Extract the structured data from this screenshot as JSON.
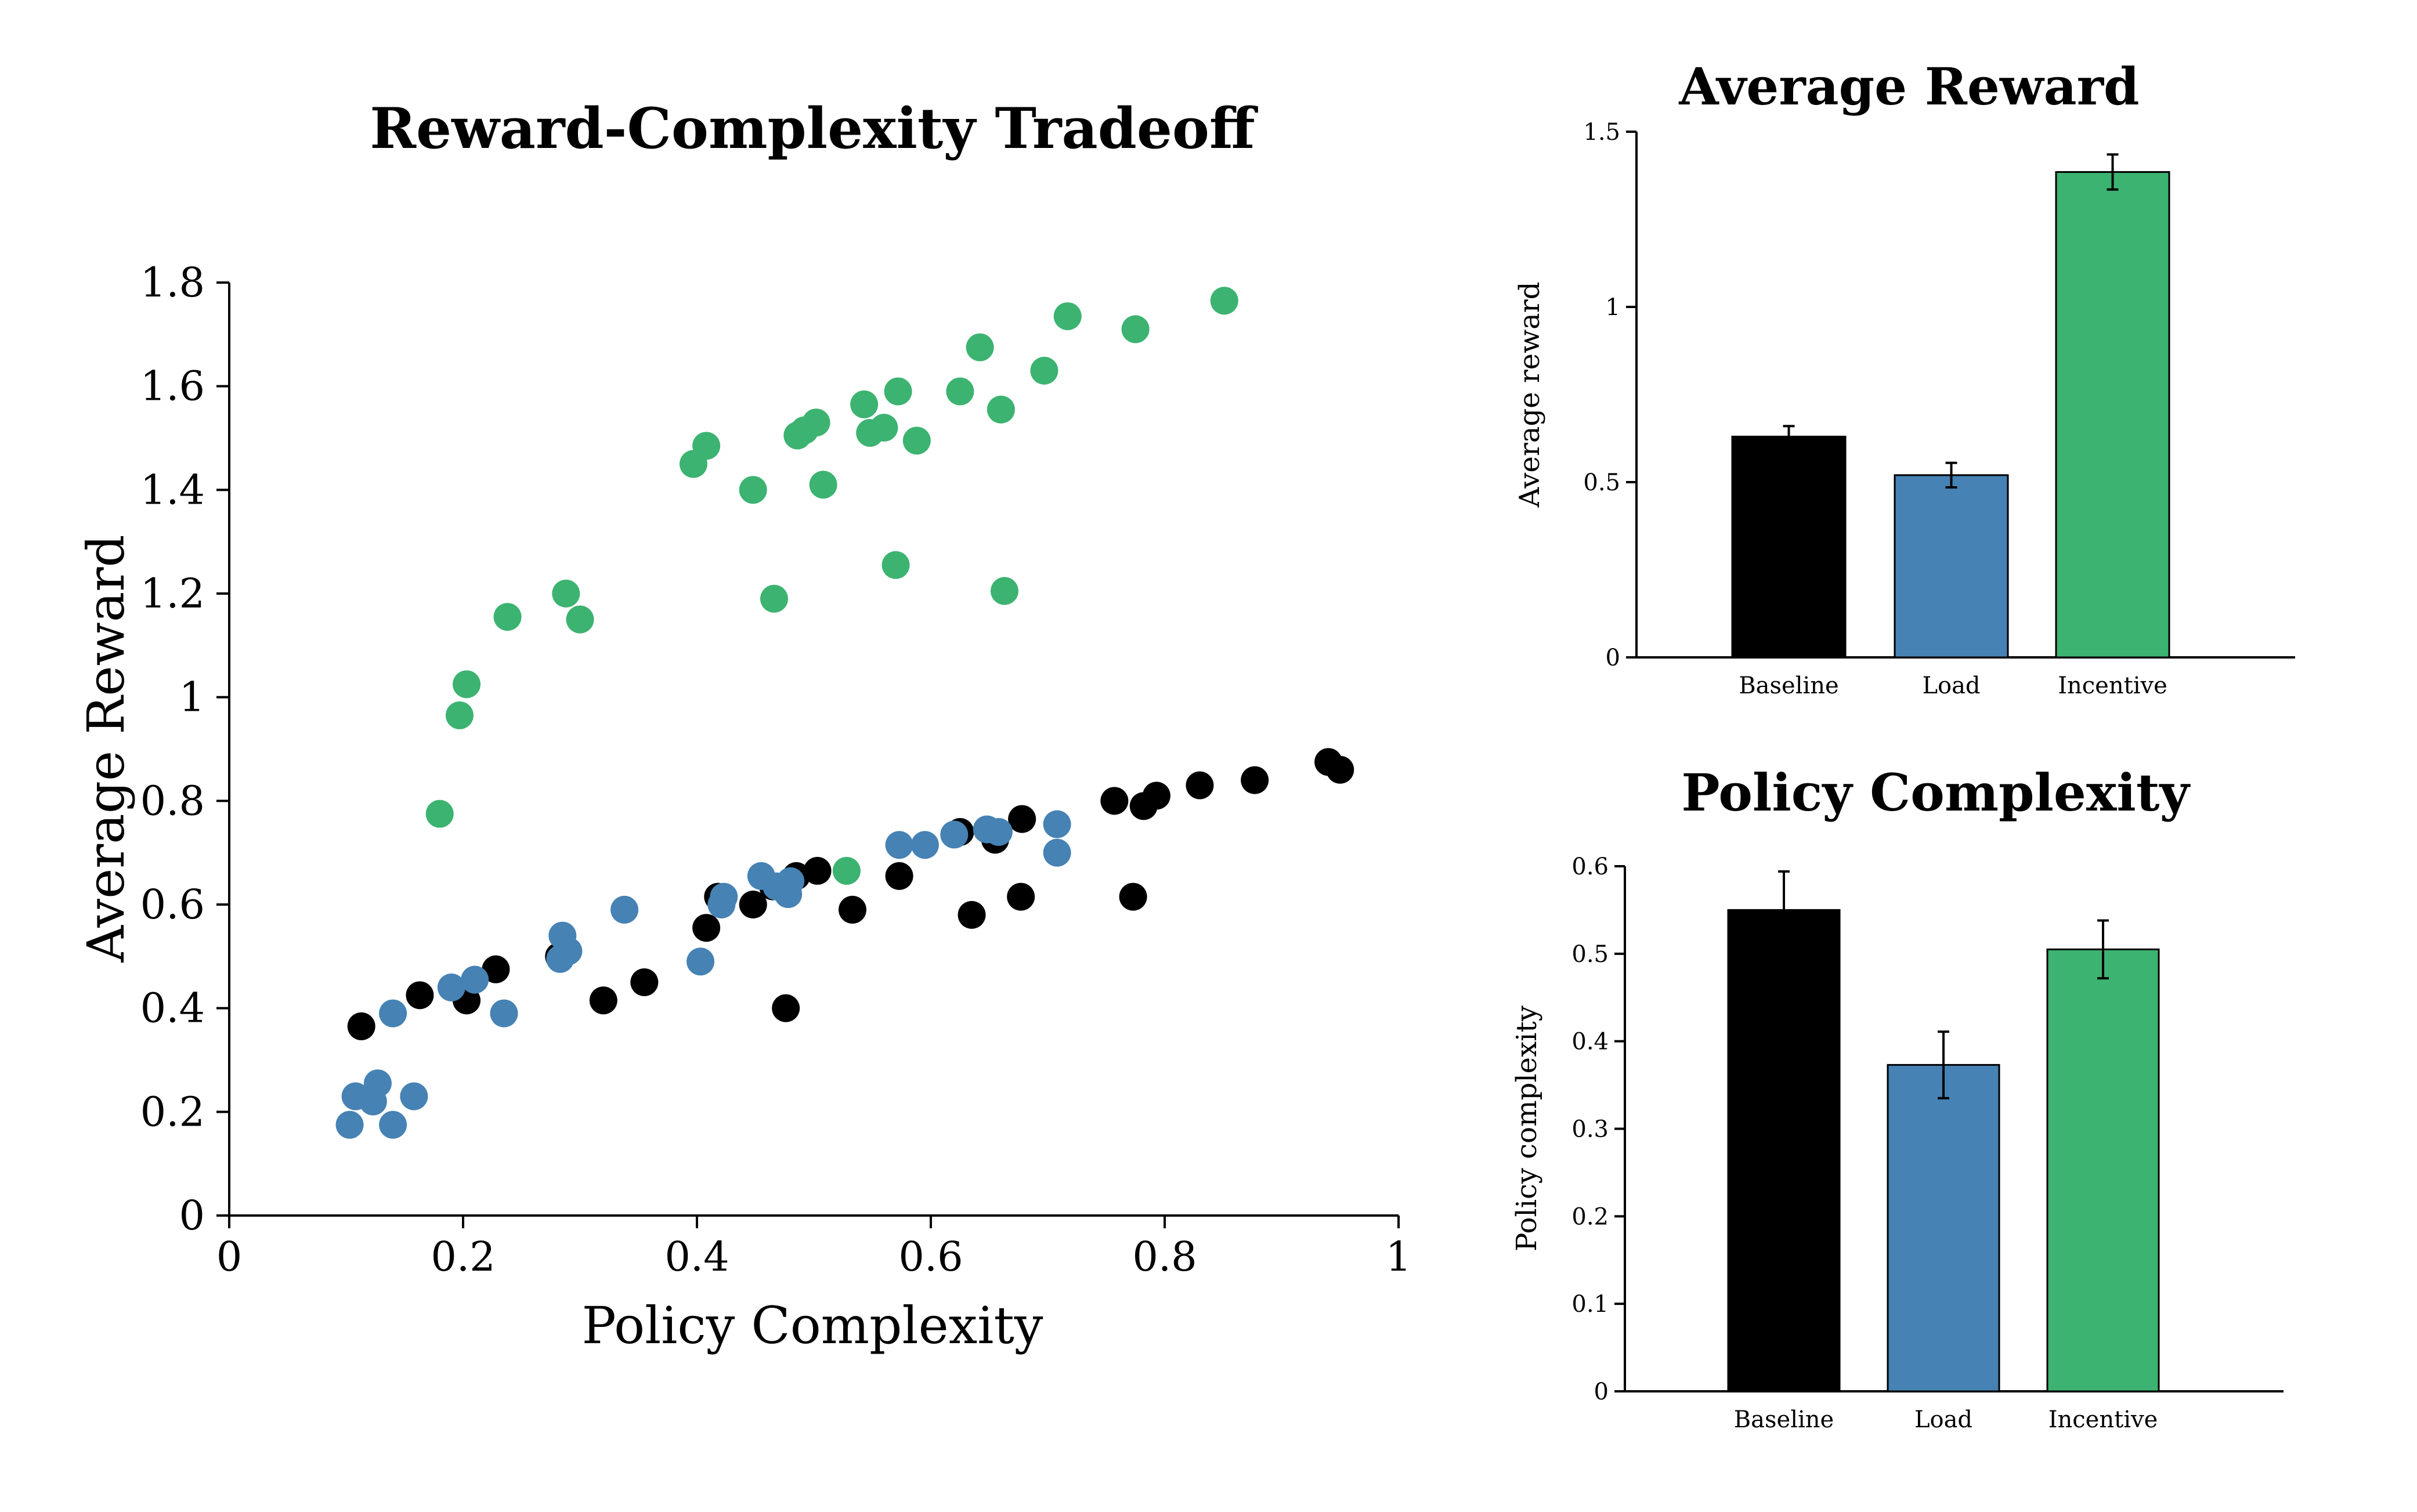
{
  "colors": {
    "baseline": "#000000",
    "load": "#4682B4",
    "incentive": "#3CB371"
  },
  "chart_data": [
    {
      "type": "scatter",
      "title": "Reward-Complexity Tradeoff",
      "xlabel": "Policy Complexity",
      "ylabel": "Average Reward",
      "xlim": [
        0,
        1
      ],
      "ylim": [
        0,
        1.8
      ],
      "xticks": [
        "0",
        "0.2",
        "0.4",
        "0.6",
        "0.8",
        "1"
      ],
      "yticks": [
        "0",
        "0.2",
        "0.4",
        "0.6",
        "0.8",
        "1",
        "1.2",
        "1.4",
        "1.6",
        "1.8"
      ],
      "grid": false,
      "series": [
        {
          "key": "baseline",
          "color": "#000000",
          "points": [
            [
              0.113,
              0.365
            ],
            [
              0.163,
              0.425
            ],
            [
              0.203,
              0.415
            ],
            [
              0.228,
              0.475
            ],
            [
              0.282,
              0.5
            ],
            [
              0.32,
              0.415
            ],
            [
              0.355,
              0.45
            ],
            [
              0.408,
              0.555
            ],
            [
              0.418,
              0.615
            ],
            [
              0.448,
              0.6
            ],
            [
              0.465,
              0.635
            ],
            [
              0.476,
              0.4
            ],
            [
              0.485,
              0.655
            ],
            [
              0.503,
              0.665
            ],
            [
              0.533,
              0.59
            ],
            [
              0.573,
              0.655
            ],
            [
              0.625,
              0.74
            ],
            [
              0.635,
              0.58
            ],
            [
              0.655,
              0.725
            ],
            [
              0.677,
              0.615
            ],
            [
              0.678,
              0.765
            ],
            [
              0.757,
              0.8
            ],
            [
              0.773,
              0.615
            ],
            [
              0.782,
              0.79
            ],
            [
              0.793,
              0.81
            ],
            [
              0.83,
              0.83
            ],
            [
              0.877,
              0.84
            ],
            [
              0.94,
              0.875
            ],
            [
              0.95,
              0.86
            ]
          ]
        },
        {
          "key": "load",
          "color": "#4682B4",
          "points": [
            [
              0.103,
              0.175
            ],
            [
              0.108,
              0.23
            ],
            [
              0.123,
              0.22
            ],
            [
              0.127,
              0.255
            ],
            [
              0.14,
              0.175
            ],
            [
              0.14,
              0.39
            ],
            [
              0.158,
              0.23
            ],
            [
              0.19,
              0.44
            ],
            [
              0.21,
              0.455
            ],
            [
              0.235,
              0.39
            ],
            [
              0.283,
              0.495
            ],
            [
              0.285,
              0.54
            ],
            [
              0.29,
              0.51
            ],
            [
              0.338,
              0.59
            ],
            [
              0.403,
              0.49
            ],
            [
              0.421,
              0.6
            ],
            [
              0.423,
              0.615
            ],
            [
              0.455,
              0.655
            ],
            [
              0.468,
              0.635
            ],
            [
              0.478,
              0.62
            ],
            [
              0.48,
              0.645
            ],
            [
              0.573,
              0.715
            ],
            [
              0.595,
              0.715
            ],
            [
              0.62,
              0.735
            ],
            [
              0.648,
              0.745
            ],
            [
              0.658,
              0.74
            ],
            [
              0.708,
              0.755
            ],
            [
              0.708,
              0.7
            ]
          ]
        },
        {
          "key": "incentive",
          "color": "#3CB371",
          "points": [
            [
              0.18,
              0.775
            ],
            [
              0.197,
              0.965
            ],
            [
              0.203,
              1.025
            ],
            [
              0.238,
              1.155
            ],
            [
              0.288,
              1.2
            ],
            [
              0.3,
              1.15
            ],
            [
              0.397,
              1.45
            ],
            [
              0.408,
              1.485
            ],
            [
              0.448,
              1.4
            ],
            [
              0.466,
              1.19
            ],
            [
              0.486,
              1.505
            ],
            [
              0.492,
              1.515
            ],
            [
              0.502,
              1.53
            ],
            [
              0.508,
              1.41
            ],
            [
              0.528,
              0.665
            ],
            [
              0.543,
              1.565
            ],
            [
              0.548,
              1.51
            ],
            [
              0.56,
              1.52
            ],
            [
              0.57,
              1.255
            ],
            [
              0.572,
              1.59
            ],
            [
              0.588,
              1.495
            ],
            [
              0.625,
              1.59
            ],
            [
              0.642,
              1.675
            ],
            [
              0.66,
              1.555
            ],
            [
              0.663,
              1.205
            ],
            [
              0.697,
              1.63
            ],
            [
              0.717,
              1.735
            ],
            [
              0.775,
              1.71
            ],
            [
              0.851,
              1.765
            ]
          ]
        }
      ]
    },
    {
      "type": "bar",
      "title": "Average Reward",
      "ylabel": "Average reward",
      "categories": [
        "Baseline",
        "Load",
        "Incentive"
      ],
      "values": [
        0.63,
        0.52,
        1.385
      ],
      "errors": [
        0.03,
        0.035,
        0.05
      ],
      "ylim": [
        0,
        1.5
      ],
      "yticks": [
        "0",
        "0.5",
        "1",
        "1.5"
      ],
      "bar_colors": [
        "#000000",
        "#4682B4",
        "#3CB371"
      ]
    },
    {
      "type": "bar",
      "title": "Policy Complexity",
      "ylabel": "Policy complexity",
      "categories": [
        "Baseline",
        "Load",
        "Incentive"
      ],
      "values": [
        0.55,
        0.373,
        0.505
      ],
      "errors": [
        0.044,
        0.038,
        0.033
      ],
      "ylim": [
        0,
        0.6
      ],
      "yticks": [
        "0",
        "0.1",
        "0.2",
        "0.3",
        "0.4",
        "0.5",
        "0.6"
      ],
      "bar_colors": [
        "#000000",
        "#4682B4",
        "#3CB371"
      ]
    }
  ]
}
